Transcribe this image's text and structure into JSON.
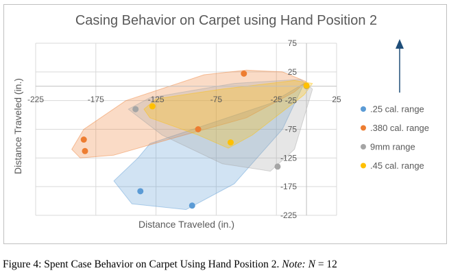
{
  "chart_data": {
    "type": "scatter",
    "title": "Casing Behavior on Carpet using Hand Position 2",
    "xlabel": "Distance Traveled (in.)",
    "ylabel": "Distance Traveled (in.)",
    "xlim": [
      -225,
      25
    ],
    "ylim": [
      -225,
      75
    ],
    "x_ticks": [
      -225,
      -175,
      -125,
      -75,
      -25,
      25
    ],
    "y_ticks": [
      75,
      25,
      -25,
      -75,
      -125,
      -175,
      -225
    ],
    "grid": true,
    "legend_position": "right",
    "arrow": "up",
    "series": [
      {
        "name": ".25 cal. range",
        "color": "#5b9bd5",
        "points": [
          [
            -138,
            -183
          ],
          [
            -95,
            -208
          ]
        ],
        "region": [
          [
            -130,
            -100
          ],
          [
            -30,
            -30
          ],
          [
            -2,
            5
          ],
          [
            -20,
            -75
          ],
          [
            -60,
            -170
          ],
          [
            -100,
            -215
          ],
          [
            -145,
            -205
          ],
          [
            -160,
            -165
          ],
          [
            -140,
            -125
          ]
        ]
      },
      {
        "name": ".380 cal. range",
        "color": "#ed7d31",
        "points": [
          [
            -185,
            -93
          ],
          [
            -184,
            -113
          ],
          [
            -52,
            22
          ],
          [
            -90,
            -75
          ]
        ],
        "region": [
          [
            -195,
            -110
          ],
          [
            -185,
            -75
          ],
          [
            -150,
            -25
          ],
          [
            -85,
            20
          ],
          [
            -50,
            28
          ],
          [
            -20,
            25
          ],
          [
            0,
            8
          ],
          [
            -10,
            -10
          ],
          [
            -50,
            -55
          ],
          [
            -110,
            -90
          ],
          [
            -160,
            -120
          ],
          [
            -188,
            -125
          ]
        ]
      },
      {
        "name": "9mm range",
        "color": "#a5a5a5",
        "points": [
          [
            -142,
            -40
          ],
          [
            -24,
            -140
          ],
          [
            0,
            0
          ]
        ],
        "region": [
          [
            -148,
            -40
          ],
          [
            -130,
            -20
          ],
          [
            -60,
            5
          ],
          [
            -5,
            12
          ],
          [
            5,
            -5
          ],
          [
            -10,
            -110
          ],
          [
            -30,
            -148
          ],
          [
            -70,
            -135
          ],
          [
            -120,
            -85
          ]
        ]
      },
      {
        "name": ".45 cal. range",
        "color": "#ffc000",
        "points": [
          [
            -128,
            -35
          ],
          [
            -63,
            -98
          ],
          [
            0,
            1
          ]
        ],
        "region": [
          [
            -135,
            -40
          ],
          [
            -125,
            -22
          ],
          [
            -70,
            -5
          ],
          [
            -10,
            10
          ],
          [
            5,
            5
          ],
          [
            -2,
            -15
          ],
          [
            -45,
            -85
          ],
          [
            -65,
            -108
          ],
          [
            -90,
            -85
          ],
          [
            -130,
            -55
          ]
        ]
      }
    ]
  },
  "caption": {
    "prefix": "Figure 4: Spent Case Behavior on Carpet Using Hand Position 2. ",
    "note_label": "Note:",
    "n_label": "N",
    "n_rest": " = 12"
  }
}
